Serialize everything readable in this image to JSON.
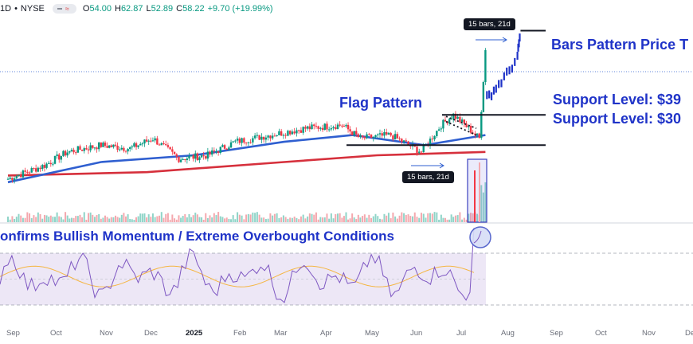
{
  "header": {
    "timeframe": "1D",
    "exchange": "NYSE",
    "open_label": "O",
    "open": "54.00",
    "high_label": "H",
    "high": "62.87",
    "low_label": "L",
    "low": "52.89",
    "close_label": "C",
    "close": "58.22",
    "change": "+9.70 (+19.99%)"
  },
  "annotations": {
    "flag_pattern": "Flag Pattern",
    "bars_pattern_target": "Bars Pattern Price T",
    "support_upper": "Support Level: $39",
    "support_lower": "Support Level: $30",
    "rsi_title": "onfirms Bullish Momentum / Extreme Overbought Conditions",
    "bars_tag_top": "15 bars, 21d",
    "bars_tag_bottom": "15 bars, 21d"
  },
  "colors": {
    "candle_up": "#089981",
    "candle_down": "#f23645",
    "ma50": "#2f5fd0",
    "ma200": "#d6303c",
    "annotation": "#1f33c8",
    "projection": "#1f33c8",
    "rsi_line": "#7e57c2",
    "rsi_ma": "#f5b642",
    "rsi_band": "#ede7f6"
  },
  "chart_data": {
    "type": "candlestick",
    "x_axis": {
      "labels": [
        "Sep",
        "Oct",
        "Nov",
        "Dec",
        "2025",
        "Feb",
        "Mar",
        "Apr",
        "May",
        "Jun",
        "Jul",
        "Aug",
        "Sep",
        "Oct",
        "Nov",
        "De"
      ]
    },
    "support_levels": [
      39,
      30
    ],
    "price_path": [
      {
        "date": "2024-09-01",
        "close": 20
      },
      {
        "date": "2024-09-25",
        "close": 24
      },
      {
        "date": "2024-10-10",
        "close": 28
      },
      {
        "date": "2024-11-01",
        "close": 30
      },
      {
        "date": "2024-11-20",
        "close": 29
      },
      {
        "date": "2024-12-05",
        "close": 32
      },
      {
        "date": "2024-12-22",
        "close": 26
      },
      {
        "date": "2025-01-10",
        "close": 27
      },
      {
        "date": "2025-01-28",
        "close": 31
      },
      {
        "date": "2025-02-20",
        "close": 33
      },
      {
        "date": "2025-03-15",
        "close": 35
      },
      {
        "date": "2025-04-08",
        "close": 36
      },
      {
        "date": "2025-04-20",
        "close": 32
      },
      {
        "date": "2025-05-10",
        "close": 33
      },
      {
        "date": "2025-05-30",
        "close": 28
      },
      {
        "date": "2025-06-12",
        "close": 36
      },
      {
        "date": "2025-06-20",
        "close": 39
      },
      {
        "date": "2025-06-30",
        "close": 35
      },
      {
        "date": "2025-07-07",
        "close": 32
      },
      {
        "date": "2025-07-11",
        "close": 58.22
      }
    ],
    "ma50_path": [
      {
        "date": "2024-09-01",
        "value": 19
      },
      {
        "date": "2024-11-01",
        "value": 25
      },
      {
        "date": "2025-01-01",
        "value": 27
      },
      {
        "date": "2025-03-01",
        "value": 31
      },
      {
        "date": "2025-04-15",
        "value": 33
      },
      {
        "date": "2025-06-01",
        "value": 30
      },
      {
        "date": "2025-07-11",
        "value": 33
      }
    ],
    "ma200_path": [
      {
        "date": "2024-09-01",
        "value": 21
      },
      {
        "date": "2024-12-01",
        "value": 22
      },
      {
        "date": "2025-03-01",
        "value": 25
      },
      {
        "date": "2025-05-01",
        "value": 27
      },
      {
        "date": "2025-07-11",
        "value": 28
      }
    ],
    "projection_path": [
      {
        "date": "2025-07-12",
        "close": 44
      },
      {
        "date": "2025-07-18",
        "close": 47
      },
      {
        "date": "2025-07-25",
        "close": 51
      },
      {
        "date": "2025-08-01",
        "close": 56
      },
      {
        "date": "2025-08-03",
        "close": 64
      }
    ],
    "rsi": {
      "upper_band": 70,
      "lower_band": 30,
      "latest": 85
    }
  }
}
